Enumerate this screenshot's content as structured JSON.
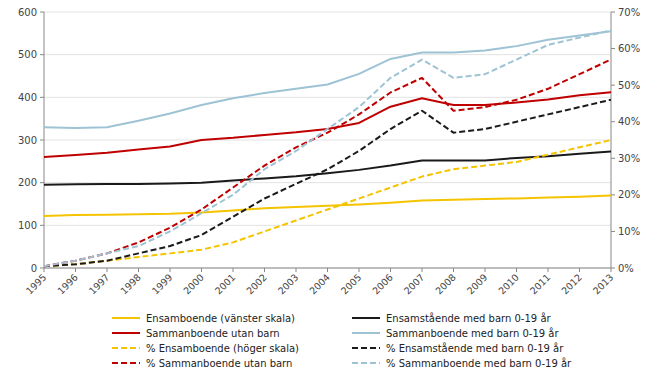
{
  "chart_data": {
    "type": "line",
    "x": [
      1995,
      1996,
      1997,
      1998,
      1999,
      2000,
      2001,
      2002,
      2003,
      2004,
      2005,
      2006,
      2007,
      2008,
      2009,
      2010,
      2011,
      2012,
      2013
    ],
    "xlim": [
      1995,
      2013
    ],
    "xticks": [
      1995,
      1996,
      1997,
      1998,
      1999,
      2000,
      2001,
      2002,
      2003,
      2004,
      2005,
      2006,
      2007,
      2008,
      2009,
      2010,
      2011,
      2012,
      2013
    ],
    "ylim": [
      0,
      600
    ],
    "yticks": [
      0,
      100,
      200,
      300,
      400,
      500,
      600
    ],
    "y2lim": [
      0,
      70
    ],
    "y2ticks": [
      {
        "value": 0,
        "label": "0%"
      },
      {
        "value": 10,
        "label": "10%"
      },
      {
        "value": 20,
        "label": "20%"
      },
      {
        "value": 30,
        "label": "30%"
      },
      {
        "value": 40,
        "label": "40%"
      },
      {
        "value": 50,
        "label": "50%"
      },
      {
        "value": 60,
        "label": "60%"
      },
      {
        "value": 70,
        "label": "70%"
      }
    ],
    "grid": "y",
    "legend": "bottom",
    "series": [
      {
        "name": "Ensamboende (vänster skala)",
        "color": "#F5C400",
        "line_style": "solid",
        "values": [
          122,
          124,
          125,
          126,
          127,
          130,
          135,
          140,
          143,
          146,
          149,
          153,
          158,
          160,
          162,
          163,
          165,
          167,
          170
        ]
      },
      {
        "name": "Ensamstående med barn 0-19 år",
        "color": "#1a1a1a",
        "line_style": "solid",
        "values": [
          195,
          196,
          197,
          197,
          198,
          200,
          205,
          210,
          215,
          222,
          230,
          240,
          252,
          252,
          252,
          258,
          262,
          268,
          273
        ]
      },
      {
        "name": "Sammanboende utan barn",
        "color": "#C00000",
        "line_style": "solid",
        "values": [
          260,
          265,
          270,
          278,
          285,
          300,
          305,
          312,
          318,
          326,
          340,
          378,
          398,
          382,
          382,
          388,
          395,
          405,
          412
        ]
      },
      {
        "name": "Sammanboende med barn 0-19 år",
        "color": "#9DC3D4",
        "line_style": "solid",
        "values": [
          330,
          328,
          330,
          345,
          362,
          382,
          398,
          410,
          420,
          430,
          455,
          490,
          505,
          505,
          510,
          520,
          535,
          545,
          555
        ]
      },
      {
        "name": "% Ensamboende (höger skala)",
        "color": "#F5C400",
        "line_style": "dashed",
        "axis": "y2",
        "values": [
          0.5,
          1,
          2,
          3,
          4,
          5,
          7,
          10,
          13,
          16,
          19,
          22,
          25,
          27,
          28,
          29,
          31,
          33,
          35
        ]
      },
      {
        "name": "% Ensamstående med barn 0-19 år",
        "color": "#1a1a1a",
        "line_style": "dashed",
        "axis": "y2",
        "values": [
          0.5,
          1,
          2,
          4,
          6,
          9,
          14,
          19,
          23,
          27,
          32,
          38,
          43,
          37,
          38,
          40,
          42,
          44,
          46
        ]
      },
      {
        "name": "% Sammanboende utan barn",
        "color": "#C00000",
        "line_style": "dashed",
        "axis": "y2",
        "values": [
          0.5,
          2,
          4,
          7,
          11,
          16,
          22,
          28,
          33,
          37,
          42,
          48,
          52,
          43,
          44,
          46,
          49,
          53,
          57
        ]
      },
      {
        "name": "% Sammanboende med barn 0-19 år",
        "color": "#9DC3D4",
        "line_style": "dashed",
        "axis": "y2",
        "values": [
          0.5,
          2,
          4,
          6,
          10,
          15,
          20,
          27,
          32,
          38,
          44,
          52,
          57,
          52,
          53,
          57,
          61,
          63,
          65
        ]
      }
    ]
  }
}
